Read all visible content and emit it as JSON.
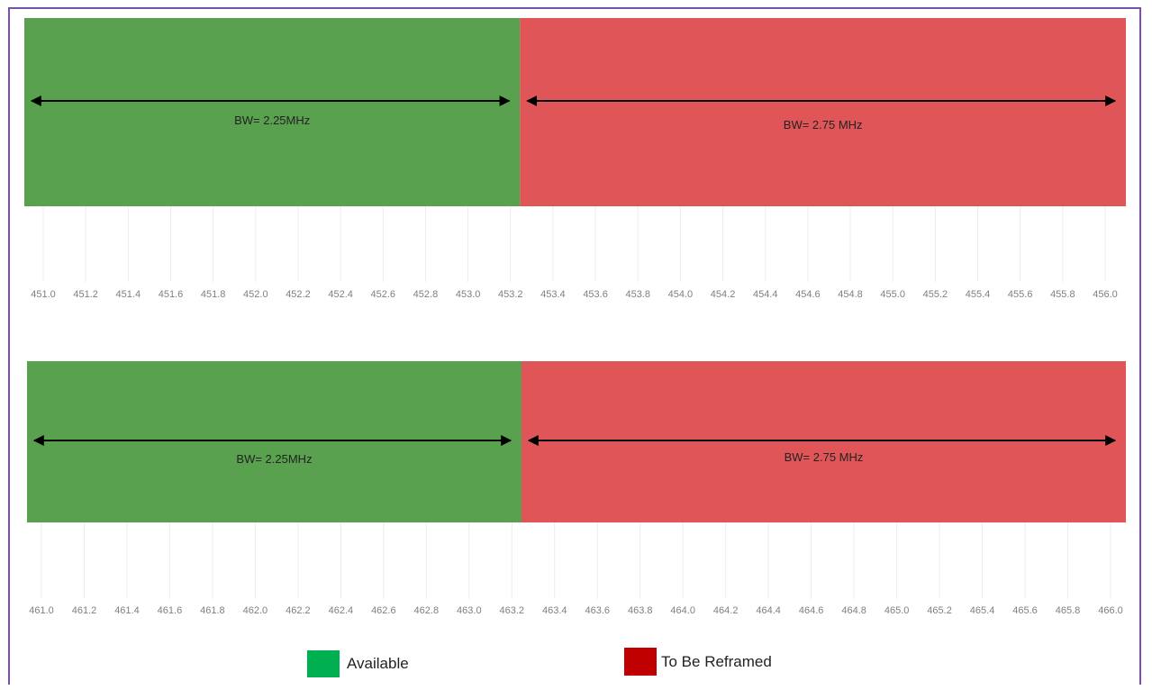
{
  "colors": {
    "available": "#5aa14f",
    "to_be_reframed": "#e05658",
    "frame": "#7a4fb3",
    "legend_available": "#00b050",
    "legend_to_be_reframed": "#c00000"
  },
  "chart_data": [
    {
      "type": "bar",
      "orientation": "horizontal-stacked",
      "xlim": [
        451.0,
        456.0
      ],
      "x_ticks": [
        "451.0",
        "451.2",
        "451.4",
        "451.6",
        "451.8",
        "452.0",
        "452.2",
        "452.4",
        "452.6",
        "452.8",
        "453.0",
        "453.2",
        "453.4",
        "453.6",
        "453.8",
        "454.0",
        "454.2",
        "454.4",
        "454.6",
        "454.8",
        "455.0",
        "455.2",
        "455.4",
        "455.6",
        "455.8",
        "456.0"
      ],
      "segments": [
        {
          "series": "Available",
          "start": 451.0,
          "end": 453.25,
          "label": "BW= 2.25MHz"
        },
        {
          "series": "To Be Reframed",
          "start": 453.25,
          "end": 456.0,
          "label": "BW= 2.75 MHz"
        }
      ],
      "grid": true
    },
    {
      "type": "bar",
      "orientation": "horizontal-stacked",
      "xlim": [
        461.0,
        466.0
      ],
      "x_ticks": [
        "461.0",
        "461.2",
        "461.4",
        "461.6",
        "461.8",
        "462.0",
        "462.2",
        "462.4",
        "462.6",
        "462.8",
        "463.0",
        "463.2",
        "463.4",
        "463.6",
        "463.8",
        "464.0",
        "464.2",
        "464.4",
        "464.6",
        "464.8",
        "465.0",
        "465.2",
        "465.4",
        "465.6",
        "465.8",
        "466.0"
      ],
      "segments": [
        {
          "series": "Available",
          "start": 461.0,
          "end": 463.25,
          "label": "BW= 2.25MHz"
        },
        {
          "series": "To Be Reframed",
          "start": 463.25,
          "end": 466.0,
          "label": "BW= 2.75 MHz"
        }
      ],
      "grid": true
    }
  ],
  "legend": {
    "placement": "bottom",
    "items": [
      {
        "label": "Available",
        "color_key": "legend_available"
      },
      {
        "label": "To Be Reframed",
        "color_key": "legend_to_be_reframed"
      }
    ]
  }
}
